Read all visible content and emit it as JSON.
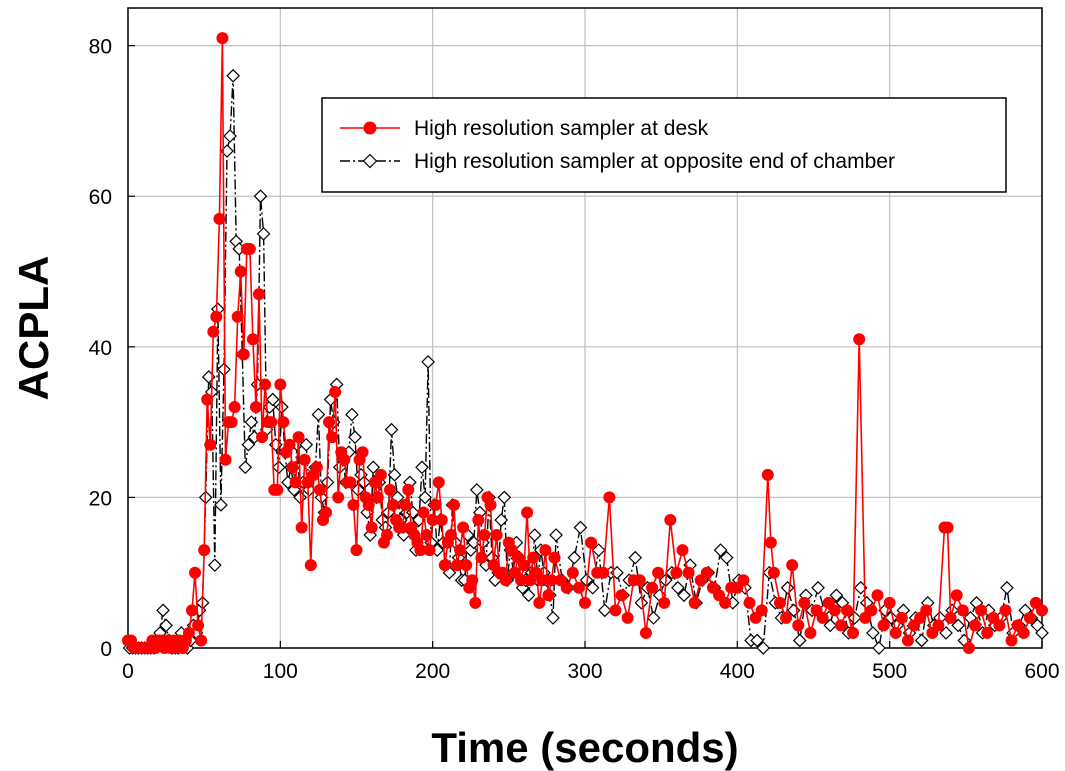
{
  "chart_data": {
    "type": "line",
    "title": "",
    "xlabel": "Time (seconds)",
    "ylabel": "ACPLA",
    "xlim": [
      0,
      600
    ],
    "ylim": [
      0,
      85
    ],
    "xticks": [
      0,
      100,
      200,
      300,
      400,
      500,
      600
    ],
    "yticks": [
      0,
      20,
      40,
      60,
      80
    ],
    "grid": true,
    "legend_position": "top-right",
    "series": [
      {
        "name": "High resolution sampler at desk",
        "color": "#ff0000",
        "line_style": "solid",
        "marker": "circle-filled",
        "x": [
          0,
          2,
          4,
          6,
          8,
          10,
          12,
          14,
          16,
          18,
          20,
          22,
          24,
          26,
          28,
          30,
          32,
          34,
          36,
          38,
          40,
          42,
          44,
          46,
          48,
          50,
          52,
          54,
          56,
          58,
          60,
          62,
          64,
          66,
          68,
          70,
          72,
          74,
          76,
          78,
          80,
          82,
          84,
          86,
          88,
          90,
          92,
          94,
          96,
          98,
          100,
          102,
          104,
          106,
          108,
          110,
          112,
          114,
          116,
          118,
          120,
          122,
          124,
          126,
          128,
          130,
          132,
          134,
          136,
          138,
          140,
          142,
          144,
          146,
          148,
          150,
          152,
          154,
          156,
          158,
          160,
          162,
          164,
          166,
          168,
          170,
          172,
          174,
          176,
          178,
          180,
          182,
          184,
          186,
          188,
          190,
          192,
          194,
          196,
          198,
          200,
          202,
          204,
          206,
          208,
          210,
          212,
          214,
          216,
          218,
          220,
          222,
          224,
          226,
          228,
          230,
          232,
          234,
          236,
          238,
          240,
          242,
          244,
          246,
          248,
          250,
          252,
          254,
          256,
          258,
          260,
          262,
          264,
          266,
          268,
          270,
          272,
          274,
          276,
          278,
          280,
          284,
          288,
          292,
          296,
          300,
          304,
          308,
          312,
          316,
          320,
          324,
          328,
          332,
          336,
          340,
          344,
          348,
          352,
          356,
          360,
          364,
          368,
          372,
          376,
          380,
          384,
          388,
          392,
          396,
          400,
          404,
          408,
          412,
          416,
          420,
          422,
          424,
          428,
          432,
          436,
          440,
          444,
          448,
          452,
          456,
          460,
          464,
          468,
          472,
          476,
          480,
          484,
          488,
          492,
          496,
          500,
          504,
          508,
          512,
          516,
          520,
          524,
          528,
          532,
          536,
          538,
          540,
          544,
          548,
          552,
          556,
          560,
          564,
          568,
          572,
          576,
          580,
          584,
          588,
          592,
          596,
          600
        ],
        "y": [
          1,
          1,
          0,
          0,
          0,
          0,
          0,
          0,
          1,
          0,
          1,
          1,
          0,
          1,
          0,
          1,
          0,
          1,
          0,
          1,
          2,
          5,
          10,
          3,
          1,
          13,
          33,
          27,
          42,
          44,
          57,
          81,
          25,
          30,
          30,
          32,
          44,
          50,
          39,
          53,
          53,
          41,
          32,
          47,
          28,
          35,
          30,
          30,
          21,
          21,
          35,
          30,
          26,
          27,
          24,
          22,
          28,
          16,
          25,
          22,
          11,
          23,
          24,
          21,
          17,
          18,
          30,
          28,
          34,
          20,
          26,
          25,
          22,
          22,
          19,
          13,
          25,
          26,
          20,
          19,
          16,
          22,
          20,
          23,
          14,
          15,
          21,
          19,
          17,
          16,
          16,
          19,
          21,
          16,
          15,
          14,
          13,
          18,
          15,
          13,
          17,
          19,
          22,
          17,
          11,
          14,
          15,
          19,
          11,
          13,
          16,
          11,
          8,
          9,
          6,
          17,
          12,
          15,
          20,
          19,
          11,
          15,
          10,
          10,
          9,
          14,
          13,
          10,
          12,
          9,
          11,
          18,
          9,
          12,
          10,
          6,
          9,
          13,
          7,
          9,
          12,
          9,
          8,
          10,
          8,
          6,
          14,
          10,
          10,
          20,
          5,
          7,
          4,
          9,
          9,
          2,
          8,
          10,
          6,
          17,
          10,
          13,
          10,
          6,
          9,
          10,
          8,
          7,
          6,
          8,
          8,
          9,
          6,
          4,
          5,
          23,
          14,
          10,
          6,
          4,
          11,
          3,
          6,
          2,
          5,
          4,
          6,
          5,
          3,
          5,
          2,
          41,
          4,
          5,
          7,
          3,
          6,
          2,
          4,
          1,
          3,
          4,
          5,
          2,
          3,
          16,
          16,
          4,
          7,
          5,
          0,
          3,
          5,
          2,
          4,
          3,
          5,
          1,
          3,
          2,
          4,
          6,
          5
        ]
      },
      {
        "name": "High resolution sampler at opposite end of chamber",
        "color": "#000000",
        "line_style": "dash-dot",
        "marker": "diamond-open",
        "x": [
          1,
          3,
          5,
          7,
          9,
          11,
          13,
          15,
          17,
          19,
          21,
          23,
          25,
          27,
          29,
          31,
          33,
          35,
          37,
          39,
          41,
          43,
          45,
          47,
          49,
          51,
          53,
          55,
          57,
          59,
          61,
          63,
          65,
          67,
          69,
          71,
          73,
          75,
          77,
          79,
          81,
          83,
          85,
          87,
          89,
          91,
          93,
          95,
          97,
          99,
          101,
          103,
          105,
          107,
          109,
          111,
          113,
          115,
          117,
          119,
          121,
          123,
          125,
          127,
          129,
          131,
          133,
          135,
          137,
          139,
          141,
          143,
          145,
          147,
          149,
          151,
          153,
          155,
          157,
          159,
          161,
          163,
          165,
          167,
          169,
          171,
          173,
          175,
          177,
          179,
          181,
          183,
          185,
          187,
          189,
          191,
          193,
          195,
          197,
          199,
          201,
          203,
          205,
          207,
          209,
          211,
          213,
          215,
          217,
          219,
          221,
          223,
          225,
          227,
          229,
          231,
          233,
          235,
          237,
          239,
          241,
          243,
          245,
          247,
          249,
          251,
          253,
          255,
          257,
          259,
          261,
          263,
          265,
          267,
          269,
          271,
          273,
          275,
          277,
          279,
          281,
          285,
          289,
          293,
          297,
          301,
          305,
          309,
          313,
          317,
          321,
          325,
          329,
          333,
          337,
          341,
          345,
          349,
          353,
          357,
          361,
          365,
          369,
          373,
          377,
          381,
          385,
          389,
          393,
          397,
          401,
          405,
          409,
          413,
          417,
          421,
          425,
          429,
          433,
          437,
          441,
          445,
          449,
          453,
          457,
          461,
          465,
          469,
          473,
          477,
          481,
          485,
          489,
          493,
          497,
          501,
          505,
          509,
          513,
          517,
          521,
          525,
          529,
          533,
          537,
          541,
          545,
          549,
          553,
          557,
          561,
          565,
          569,
          573,
          577,
          581,
          585,
          589,
          593,
          597,
          600
        ],
        "y": [
          0,
          0,
          0,
          0,
          0,
          0,
          0,
          0,
          0,
          1,
          2,
          5,
          3,
          1,
          0,
          0,
          0,
          2,
          1,
          0,
          1,
          3,
          2,
          5,
          6,
          20,
          36,
          34,
          11,
          45,
          19,
          37,
          66,
          68,
          76,
          54,
          53,
          39,
          24,
          27,
          30,
          28,
          35,
          60,
          55,
          29,
          32,
          33,
          27,
          24,
          32,
          26,
          22,
          24,
          21,
          27,
          20,
          22,
          27,
          21,
          23,
          24,
          31,
          20,
          18,
          22,
          33,
          30,
          35,
          24,
          25,
          22,
          26,
          31,
          28,
          21,
          23,
          22,
          18,
          15,
          24,
          20,
          22,
          17,
          16,
          18,
          29,
          23,
          20,
          17,
          15,
          18,
          22,
          18,
          13,
          17,
          24,
          20,
          38,
          14,
          19,
          13,
          17,
          14,
          11,
          10,
          19,
          14,
          12,
          9,
          9,
          15,
          13,
          14,
          21,
          18,
          14,
          11,
          20,
          12,
          9,
          10,
          17,
          20,
          9,
          13,
          10,
          14,
          12,
          8,
          9,
          7,
          10,
          15,
          9,
          13,
          10,
          9,
          7,
          4,
          15,
          9,
          8,
          12,
          16,
          9,
          8,
          13,
          5,
          10,
          10,
          7,
          9,
          12,
          6,
          8,
          4,
          7,
          9,
          10,
          8,
          7,
          11,
          6,
          9,
          10,
          8,
          13,
          12,
          6,
          9,
          8,
          1,
          1,
          0,
          10,
          6,
          4,
          8,
          5,
          1,
          7,
          5,
          8,
          5,
          3,
          7,
          6,
          2,
          4,
          8,
          6,
          2,
          0,
          5,
          4,
          3,
          5,
          2,
          4,
          1,
          6,
          3,
          4,
          2,
          5,
          3,
          1,
          4,
          6,
          2,
          5,
          3,
          4,
          8,
          2,
          3,
          5,
          4,
          3,
          2
        ],
        "y_fix": [
          0,
          0,
          0,
          0,
          0,
          0,
          0,
          0,
          0,
          1,
          2,
          5,
          3,
          1,
          0,
          0,
          0,
          2,
          1,
          0,
          1,
          3,
          2,
          5,
          6,
          20,
          36,
          34,
          11,
          45,
          19,
          37,
          66,
          68,
          76,
          54,
          53,
          39,
          24,
          27,
          30,
          28,
          35,
          60,
          55,
          29,
          32,
          33,
          27,
          24,
          32,
          26,
          22,
          24,
          21,
          27,
          20,
          22,
          27,
          21,
          23,
          24,
          31,
          20,
          18,
          22,
          33,
          30,
          35,
          24,
          25,
          22,
          26,
          31,
          28,
          21,
          23,
          22,
          18,
          15,
          24,
          20,
          22,
          17,
          16,
          18,
          29,
          23,
          20,
          17,
          15,
          18,
          22,
          18,
          13,
          17,
          24,
          20,
          38,
          14,
          19,
          13,
          17,
          14,
          11,
          10,
          19,
          14,
          12,
          9,
          9,
          15,
          13,
          14,
          21,
          18,
          14,
          11,
          20,
          12,
          9,
          10,
          17,
          20,
          9,
          13,
          10,
          14,
          12,
          8,
          9,
          7,
          10,
          15,
          9,
          13,
          10,
          9,
          7,
          4,
          15,
          9,
          8,
          12,
          16,
          9,
          8,
          13,
          5,
          10,
          10,
          7,
          9,
          12,
          6,
          8,
          4,
          7,
          9,
          10,
          8,
          7,
          11,
          6,
          9,
          10,
          8,
          13,
          12,
          6,
          9,
          8,
          1,
          1,
          0,
          10,
          6,
          4,
          8,
          5,
          1,
          7,
          5,
          8,
          5,
          3,
          7,
          6,
          2,
          4,
          8,
          6,
          2,
          0,
          5,
          4,
          3,
          5,
          2,
          4,
          1,
          6,
          3,
          4,
          2,
          5,
          3,
          1,
          4,
          6,
          2,
          5,
          3,
          4,
          8,
          2,
          3,
          5,
          4,
          3,
          2
        ]
      }
    ]
  }
}
